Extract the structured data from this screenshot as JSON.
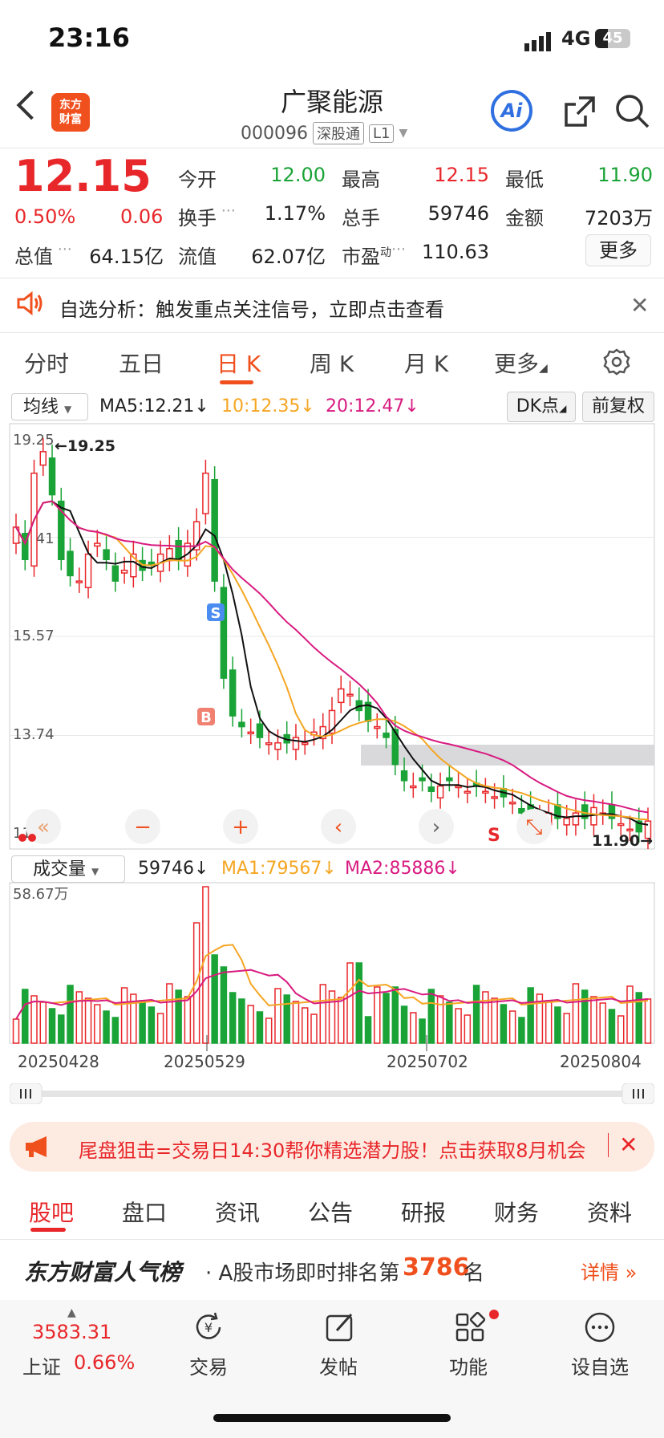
{
  "status": {
    "time": "23:16",
    "network": "4G",
    "battery": "45"
  },
  "header": {
    "logo_line1": "东方",
    "logo_line2": "财富",
    "name": "广聚能源",
    "code": "000096",
    "tag1": "深股通",
    "tag2": "L1",
    "ai_label": "Ai"
  },
  "quote": {
    "price": "12.15",
    "pct": "0.50%",
    "chg": "0.06",
    "open_label": "今开",
    "open": "12.00",
    "high_label": "最高",
    "high": "12.15",
    "low_label": "最低",
    "low": "11.90",
    "turnover_label": "换手",
    "turnover": "1.17%",
    "volume_label": "总手",
    "volume": "59746",
    "amount_label": "金额",
    "amount": "7203万",
    "mktcap_label": "总值",
    "mktcap": "64.15亿",
    "float_label": "流值",
    "float": "62.07亿",
    "pe_label": "市盈",
    "pe_sup": "动",
    "pe": "110.63",
    "more": "更多"
  },
  "alert": {
    "text": "自选分析：触发重点关注信号，立即点击查看"
  },
  "ktabs": [
    "分时",
    "五日",
    "日 K",
    "周 K",
    "月 K",
    "更多"
  ],
  "ma_legend": {
    "select": "均线",
    "ma5": "MA5:12.21↓",
    "ma10": "10:12.35↓",
    "ma20": "20:12.47↓",
    "dk": "DK点",
    "fq": "前复权"
  },
  "vol_legend": {
    "select": "成交量",
    "vol": "59746↓",
    "ma1": "MA1:79567↓",
    "ma2": "MA2:85886↓",
    "max_label": "58.67万"
  },
  "dates": [
    "20250428",
    "20250529",
    "20250702",
    "20250804"
  ],
  "chart_data": {
    "type": "candlestick",
    "y_tick_labels": [
      "19.25",
      "17.41",
      "15.57",
      "13.74",
      "11.90"
    ],
    "high_marker": "19.25",
    "low_marker": "11.90",
    "signals": [
      "S",
      "B",
      "S"
    ],
    "colors": {
      "up": "#e8272a",
      "down": "#1aa336",
      "ma5": "#111111",
      "ma10": "#f5a623",
      "ma20": "#d81b80"
    },
    "closes": [
      17.6,
      17.0,
      18.6,
      19.0,
      18.2,
      17.0,
      16.7,
      16.6,
      17.1,
      17.3,
      17.0,
      16.6,
      16.8,
      17.1,
      16.8,
      16.9,
      17.1,
      17.2,
      17.0,
      17.3,
      17.7,
      18.6,
      16.6,
      14.8,
      14.1,
      13.9,
      13.8,
      13.7,
      13.6,
      13.6,
      13.6,
      13.7,
      13.6,
      13.8,
      13.9,
      14.2,
      14.6,
      14.5,
      14.2,
      14.0,
      13.9,
      13.7,
      13.2,
      12.9,
      12.8,
      12.9,
      12.7,
      12.8,
      12.9,
      12.8,
      12.7,
      12.8,
      12.7,
      12.6,
      12.6,
      12.5,
      12.3,
      12.2,
      12.2,
      12.3,
      12.2,
      12.2,
      12.3,
      12.2,
      12.4,
      12.3,
      12.2,
      12.1,
      12.0,
      11.95,
      12.15
    ],
    "volume_max_label": "58.67万"
  },
  "promo": {
    "text": "尾盘狙击=交易日14:30帮你精选潜力股！点击获取8月机会"
  },
  "bottom_tabs": [
    "股吧",
    "盘口",
    "资讯",
    "公告",
    "研报",
    "财务",
    "资料"
  ],
  "popularity": {
    "title": "东方财富人气榜",
    "text": "· A股市场即时排名第",
    "rank": "3786",
    "suffix": "名",
    "detail": "详情"
  },
  "bottom_nav": {
    "index_value": "3583.31",
    "index_name": "上证",
    "index_pct": "0.66%",
    "trade": "交易",
    "post": "发帖",
    "func": "功能",
    "watch": "设自选"
  }
}
